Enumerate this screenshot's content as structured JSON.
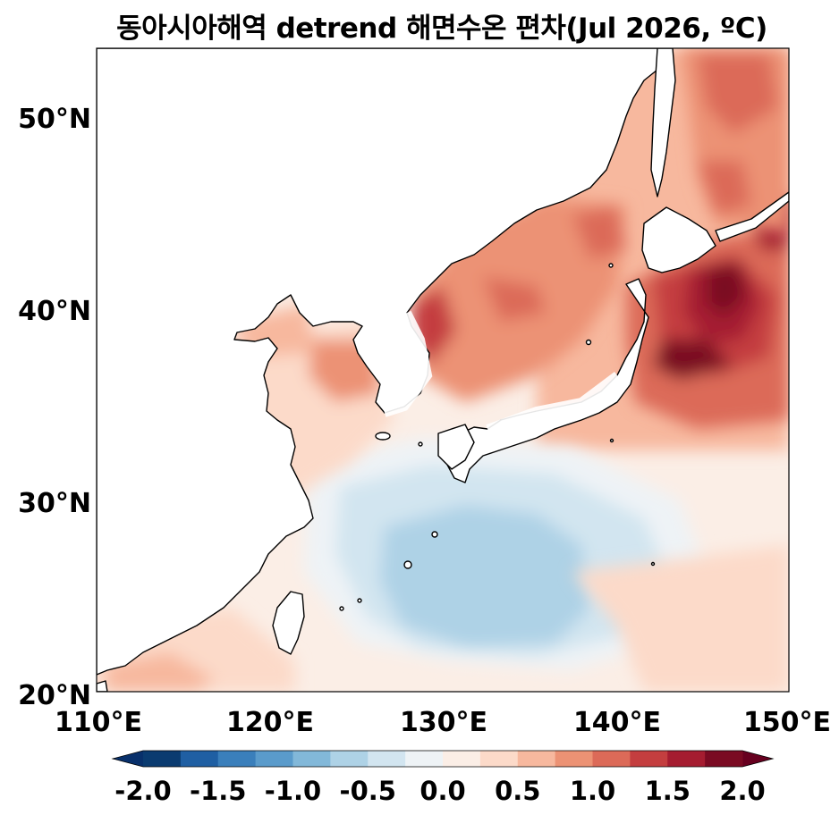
{
  "title": "동아시아해역 detrend 해면수온 편차(Jul 2026, ºC)",
  "map": {
    "region": "East Asia seas",
    "lon_range": [
      110,
      150
    ],
    "lat_range": [
      20,
      53.5
    ],
    "lon_ticks": [
      "110°E",
      "120°E",
      "130°E",
      "140°E",
      "150°E"
    ],
    "lat_ticks": [
      "20°N",
      "30°N",
      "40°N",
      "50°N"
    ],
    "land_color": "#ffffff",
    "coastline_color": "#000000"
  },
  "colorbar": {
    "min": -2.0,
    "max": 2.0,
    "step": 0.25,
    "extend": "both",
    "tick_labels": [
      "-2.0",
      "-1.5",
      "-1.0",
      "-0.5",
      "0.0",
      "0.5",
      "1.0",
      "1.5",
      "2.0"
    ],
    "colors": [
      "#0a3b70",
      "#1f5fa3",
      "#3a7fbb",
      "#5a9bcb",
      "#82b8d9",
      "#aed2e6",
      "#d2e5f0",
      "#eef3f6",
      "#fbeee6",
      "#fcdac9",
      "#f7b89e",
      "#ec9274",
      "#dc6a58",
      "#c43e3f",
      "#a51c30",
      "#7a0a22"
    ]
  },
  "anomaly_regions": [
    {
      "name": "kuroshio-extension-core",
      "anomaly": 2.0
    },
    {
      "name": "east-sea",
      "anomaly": 1.0
    },
    {
      "name": "okhotsk-sea",
      "anomaly": 1.0
    },
    {
      "name": "yellow-sea",
      "anomaly": 0.5
    },
    {
      "name": "east-china-sea",
      "anomaly": 0.25
    },
    {
      "name": "subtropical-western-pacific",
      "anomaly": -0.5
    },
    {
      "name": "south-china-sea-north",
      "anomaly": 0.5
    }
  ]
}
